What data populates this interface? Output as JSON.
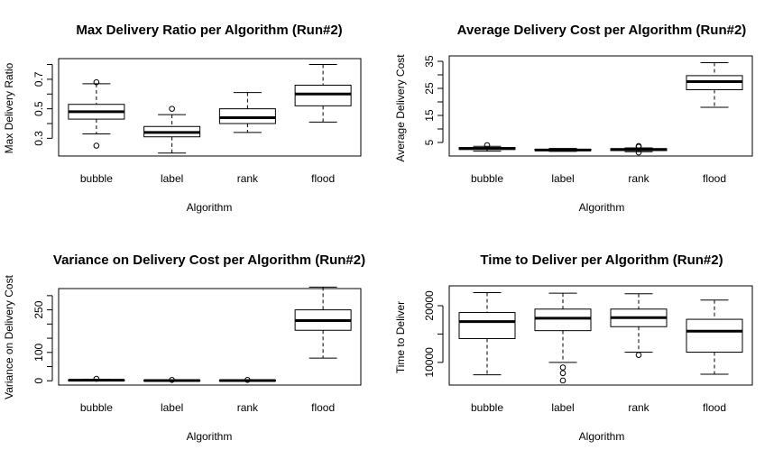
{
  "chart_data": [
    {
      "type": "boxplot",
      "title": "Max Delivery Ratio per Algorithm (Run#2)",
      "xlabel": "Algorithm",
      "ylabel": "Max Delivery Ratio",
      "categories": [
        "bubble",
        "label",
        "rank",
        "flood"
      ],
      "yticks": [
        0.3,
        0.5,
        0.7
      ],
      "ytick_labels": [
        "0.3",
        "0.5",
        "0.7"
      ],
      "yminor": [
        0.4,
        0.6,
        0.8
      ],
      "ylim": [
        0.18,
        0.84
      ],
      "boxes": [
        {
          "min": 0.33,
          "q1": 0.43,
          "median": 0.48,
          "q3": 0.53,
          "max": 0.67,
          "outliers": [
            0.25,
            0.68
          ]
        },
        {
          "min": 0.2,
          "q1": 0.31,
          "median": 0.34,
          "q3": 0.38,
          "max": 0.46,
          "outliers": [
            0.5
          ]
        },
        {
          "min": 0.34,
          "q1": 0.4,
          "median": 0.44,
          "q3": 0.5,
          "max": 0.61,
          "outliers": []
        },
        {
          "min": 0.41,
          "q1": 0.52,
          "median": 0.6,
          "q3": 0.66,
          "max": 0.8,
          "outliers": []
        }
      ]
    },
    {
      "type": "boxplot",
      "title": "Average Delivery Cost per Algorithm (Run#2)",
      "xlabel": "Algorithm",
      "ylabel": "Average Delivery Cost",
      "categories": [
        "bubble",
        "label",
        "rank",
        "flood"
      ],
      "yticks": [
        5,
        15,
        25,
        35
      ],
      "ytick_labels": [
        "5",
        "15",
        "25",
        "35"
      ],
      "yminor": [
        10,
        20,
        30
      ],
      "ylim": [
        0,
        37
      ],
      "boxes": [
        {
          "min": 1.8,
          "q1": 2.4,
          "median": 2.8,
          "q3": 3.1,
          "max": 3.6,
          "outliers": [
            4.0
          ]
        },
        {
          "min": 1.7,
          "q1": 2.0,
          "median": 2.2,
          "q3": 2.5,
          "max": 2.8,
          "outliers": []
        },
        {
          "min": 1.6,
          "q1": 2.0,
          "median": 2.4,
          "q3": 2.7,
          "max": 3.0,
          "outliers": [
            1.3,
            3.4,
            3.7
          ]
        },
        {
          "min": 18.0,
          "q1": 24.5,
          "median": 27.5,
          "q3": 29.7,
          "max": 34.5,
          "outliers": []
        }
      ]
    },
    {
      "type": "boxplot",
      "title": "Variance on Delivery Cost per Algorithm (Run#2)",
      "xlabel": "Algorithm",
      "ylabel": "Variance on Delivery Cost",
      "categories": [
        "bubble",
        "label",
        "rank",
        "flood"
      ],
      "yticks": [
        0,
        100,
        250
      ],
      "ytick_labels": [
        "0",
        "100",
        "250"
      ],
      "yminor": [
        50,
        150,
        200,
        300
      ],
      "ylim": [
        -15,
        325
      ],
      "boxes": [
        {
          "min": 0,
          "q1": 1,
          "median": 2,
          "q3": 3,
          "max": 5,
          "outliers": [
            7
          ]
        },
        {
          "min": 0,
          "q1": 0.5,
          "median": 1,
          "q3": 2,
          "max": 4,
          "outliers": [
            3
          ]
        },
        {
          "min": 0,
          "q1": 0.5,
          "median": 1,
          "q3": 2,
          "max": 4,
          "outliers": [
            3
          ]
        },
        {
          "min": 80,
          "q1": 178,
          "median": 212,
          "q3": 250,
          "max": 330,
          "outliers": []
        }
      ]
    },
    {
      "type": "boxplot",
      "title": "Time to Deliver per Algorithm (Run#2)",
      "xlabel": "Algorithm",
      "ylabel": "Time to Deliver",
      "categories": [
        "bubble",
        "label",
        "rank",
        "flood"
      ],
      "yticks": [
        10000,
        20000
      ],
      "ytick_labels": [
        "10000",
        "20000"
      ],
      "yminor": [
        15000
      ],
      "ylim": [
        6000,
        23500
      ],
      "boxes": [
        {
          "min": 7800,
          "q1": 14200,
          "median": 17200,
          "q3": 18800,
          "max": 22300,
          "outliers": []
        },
        {
          "min": 10000,
          "q1": 15600,
          "median": 17800,
          "q3": 19400,
          "max": 22200,
          "outliers": [
            6800,
            8100,
            9100
          ]
        },
        {
          "min": 11800,
          "q1": 16300,
          "median": 17900,
          "q3": 19400,
          "max": 22100,
          "outliers": [
            11300
          ]
        },
        {
          "min": 7900,
          "q1": 11800,
          "median": 15500,
          "q3": 17600,
          "max": 21000,
          "outliers": []
        }
      ]
    }
  ]
}
